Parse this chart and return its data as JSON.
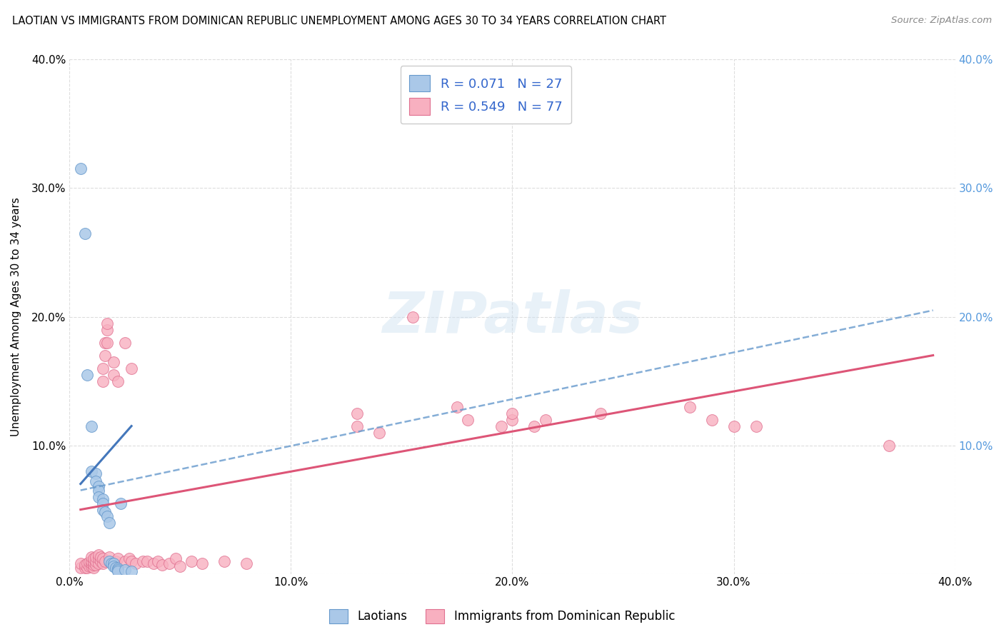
{
  "title": "LAOTIAN VS IMMIGRANTS FROM DOMINICAN REPUBLIC UNEMPLOYMENT AMONG AGES 30 TO 34 YEARS CORRELATION CHART",
  "source": "Source: ZipAtlas.com",
  "ylabel": "Unemployment Among Ages 30 to 34 years",
  "xlim": [
    0.0,
    0.4
  ],
  "ylim": [
    0.0,
    0.4
  ],
  "xtick_values": [
    0.0,
    0.1,
    0.2,
    0.3,
    0.4
  ],
  "xtick_labels": [
    "0.0%",
    "10.0%",
    "20.0%",
    "30.0%",
    "40.0%"
  ],
  "ytick_values": [
    0.0,
    0.1,
    0.2,
    0.3,
    0.4
  ],
  "ytick_labels": [
    "",
    "10.0%",
    "20.0%",
    "30.0%",
    "40.0%"
  ],
  "right_ytick_values": [
    0.1,
    0.2,
    0.3,
    0.4
  ],
  "right_ytick_labels": [
    "10.0%",
    "20.0%",
    "30.0%",
    "40.0%"
  ],
  "legend_R_blue": "0.071",
  "legend_N_blue": "27",
  "legend_R_pink": "0.549",
  "legend_N_pink": "77",
  "blue_color": "#aac8e8",
  "pink_color": "#f8b0c0",
  "blue_edge_color": "#6699cc",
  "pink_edge_color": "#e07090",
  "blue_line_color": "#4477bb",
  "pink_line_color": "#dd5577",
  "blue_scatter": [
    [
      0.005,
      0.315
    ],
    [
      0.007,
      0.265
    ],
    [
      0.008,
      0.155
    ],
    [
      0.01,
      0.115
    ],
    [
      0.01,
      0.08
    ],
    [
      0.012,
      0.078
    ],
    [
      0.012,
      0.072
    ],
    [
      0.013,
      0.068
    ],
    [
      0.013,
      0.065
    ],
    [
      0.013,
      0.06
    ],
    [
      0.015,
      0.058
    ],
    [
      0.015,
      0.055
    ],
    [
      0.015,
      0.05
    ],
    [
      0.016,
      0.048
    ],
    [
      0.017,
      0.045
    ],
    [
      0.018,
      0.04
    ],
    [
      0.018,
      0.01
    ],
    [
      0.019,
      0.008
    ],
    [
      0.02,
      0.008
    ],
    [
      0.02,
      0.006
    ],
    [
      0.021,
      0.005
    ],
    [
      0.022,
      0.004
    ],
    [
      0.022,
      0.003
    ],
    [
      0.022,
      0.002
    ],
    [
      0.023,
      0.055
    ],
    [
      0.025,
      0.003
    ],
    [
      0.028,
      0.002
    ]
  ],
  "pink_scatter": [
    [
      0.005,
      0.005
    ],
    [
      0.005,
      0.008
    ],
    [
      0.007,
      0.005
    ],
    [
      0.007,
      0.007
    ],
    [
      0.008,
      0.005
    ],
    [
      0.008,
      0.008
    ],
    [
      0.009,
      0.006
    ],
    [
      0.009,
      0.009
    ],
    [
      0.01,
      0.006
    ],
    [
      0.01,
      0.008
    ],
    [
      0.01,
      0.01
    ],
    [
      0.01,
      0.013
    ],
    [
      0.011,
      0.005
    ],
    [
      0.011,
      0.007
    ],
    [
      0.011,
      0.009
    ],
    [
      0.011,
      0.012
    ],
    [
      0.012,
      0.007
    ],
    [
      0.012,
      0.01
    ],
    [
      0.012,
      0.013
    ],
    [
      0.013,
      0.008
    ],
    [
      0.013,
      0.012
    ],
    [
      0.013,
      0.015
    ],
    [
      0.014,
      0.01
    ],
    [
      0.014,
      0.013
    ],
    [
      0.015,
      0.008
    ],
    [
      0.015,
      0.012
    ],
    [
      0.015,
      0.15
    ],
    [
      0.015,
      0.16
    ],
    [
      0.016,
      0.01
    ],
    [
      0.016,
      0.17
    ],
    [
      0.016,
      0.18
    ],
    [
      0.017,
      0.18
    ],
    [
      0.017,
      0.19
    ],
    [
      0.017,
      0.195
    ],
    [
      0.018,
      0.01
    ],
    [
      0.018,
      0.013
    ],
    [
      0.02,
      0.008
    ],
    [
      0.02,
      0.155
    ],
    [
      0.02,
      0.165
    ],
    [
      0.021,
      0.01
    ],
    [
      0.022,
      0.012
    ],
    [
      0.022,
      0.15
    ],
    [
      0.025,
      0.18
    ],
    [
      0.025,
      0.01
    ],
    [
      0.027,
      0.012
    ],
    [
      0.028,
      0.01
    ],
    [
      0.028,
      0.16
    ],
    [
      0.03,
      0.008
    ],
    [
      0.033,
      0.01
    ],
    [
      0.035,
      0.01
    ],
    [
      0.038,
      0.008
    ],
    [
      0.04,
      0.01
    ],
    [
      0.042,
      0.007
    ],
    [
      0.045,
      0.008
    ],
    [
      0.048,
      0.012
    ],
    [
      0.05,
      0.006
    ],
    [
      0.055,
      0.01
    ],
    [
      0.06,
      0.008
    ],
    [
      0.07,
      0.01
    ],
    [
      0.08,
      0.008
    ],
    [
      0.13,
      0.115
    ],
    [
      0.13,
      0.125
    ],
    [
      0.14,
      0.11
    ],
    [
      0.155,
      0.2
    ],
    [
      0.175,
      0.13
    ],
    [
      0.18,
      0.12
    ],
    [
      0.195,
      0.115
    ],
    [
      0.2,
      0.12
    ],
    [
      0.2,
      0.125
    ],
    [
      0.21,
      0.115
    ],
    [
      0.215,
      0.12
    ],
    [
      0.24,
      0.125
    ],
    [
      0.28,
      0.13
    ],
    [
      0.29,
      0.12
    ],
    [
      0.3,
      0.115
    ],
    [
      0.31,
      0.115
    ],
    [
      0.37,
      0.1
    ]
  ],
  "blue_trendline": [
    [
      0.005,
      0.07
    ],
    [
      0.028,
      0.115
    ]
  ],
  "blue_dashed_trendline": [
    [
      0.005,
      0.065
    ],
    [
      0.39,
      0.205
    ]
  ],
  "pink_trendline": [
    [
      0.005,
      0.05
    ],
    [
      0.39,
      0.17
    ]
  ],
  "watermark_text": "ZIPatlas",
  "background_color": "#ffffff",
  "grid_color": "#dddddd"
}
